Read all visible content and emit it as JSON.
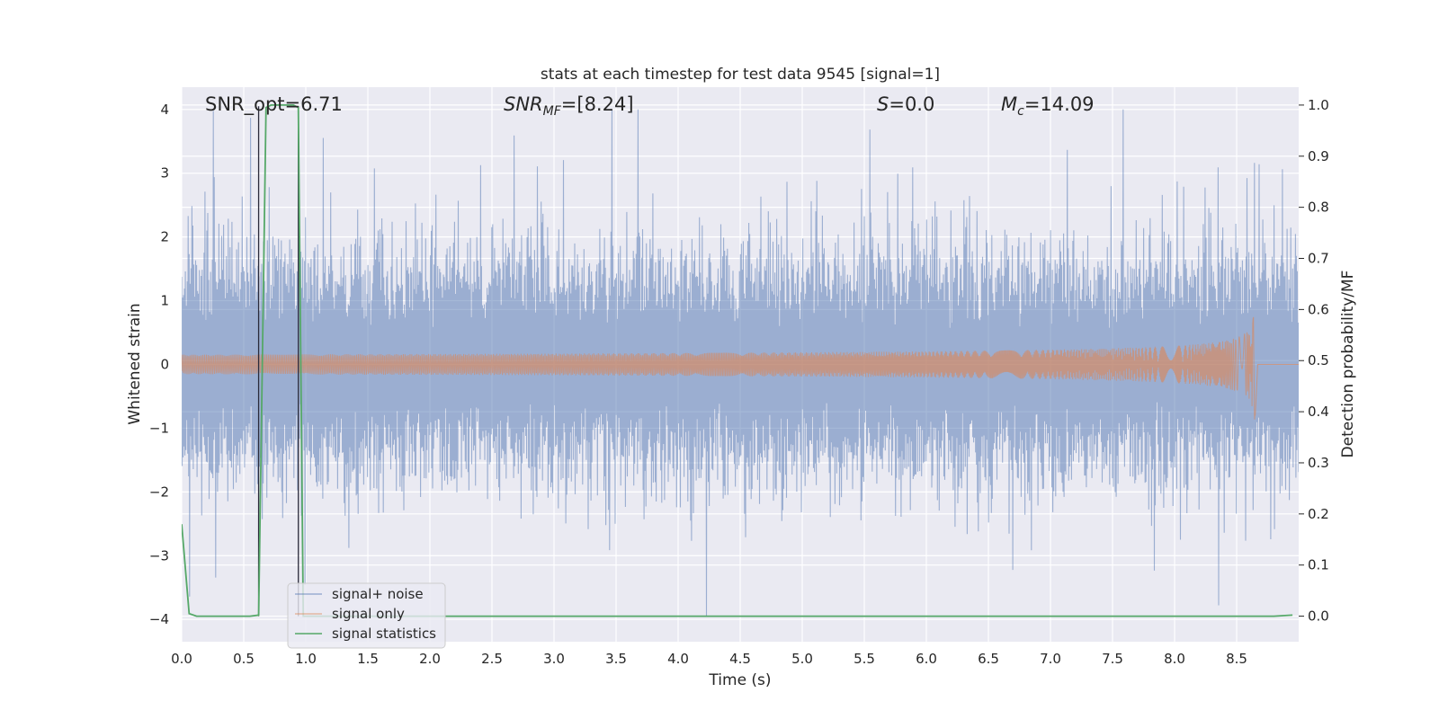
{
  "chart_data": {
    "type": "line",
    "title": "stats at each timestep for test data 9545 [signal=1]",
    "xlabel": "Time (s)",
    "ylabel": "Whitened strain",
    "ylabel_right": "Detection probability/MF",
    "xlim": [
      0.0,
      9.0
    ],
    "ylim": [
      -4.35,
      4.35
    ],
    "ylim_right": [
      -0.05,
      1.035
    ],
    "x_ticks": [
      "0.0",
      "0.5",
      "1.0",
      "1.5",
      "2.0",
      "2.5",
      "3.0",
      "3.5",
      "4.0",
      "4.5",
      "5.0",
      "5.5",
      "6.0",
      "6.5",
      "7.0",
      "7.5",
      "8.0",
      "8.5"
    ],
    "y_ticks": [
      "4",
      "3",
      "2",
      "1",
      "0",
      "−1",
      "−2",
      "−3",
      "−4"
    ],
    "y_ticks_right": [
      "1.0",
      "0.9",
      "0.8",
      "0.7",
      "0.6",
      "0.5",
      "0.4",
      "0.3",
      "0.2",
      "0.1",
      "0.0"
    ],
    "grid": true,
    "legend_position": "bottom-left",
    "annotations": {
      "snr_opt": "SNR_opt=6.71",
      "snr_mf_main": "SNR",
      "snr_mf_sub": "MF",
      "snr_mf_value": "=[8.24]",
      "s_main": "S",
      "s_value": "=0.0",
      "mc_main": "M",
      "mc_sub": "c",
      "mc_value": "=14.09"
    },
    "vlines_x": [
      0.62,
      0.94
    ],
    "series": [
      {
        "name": "signal+ noise",
        "color": "#4c72b0",
        "description": "whitened noisy strain, dense oscillation roughly within ±1.6 with spikes up to about ±4",
        "approx_envelope": [
          -1.6,
          1.6
        ],
        "peak_max": 4.0,
        "peak_min": -3.95
      },
      {
        "name": "signal only",
        "color": "#dd8452",
        "description": "chirp waveform growing in amplitude until merger near t = 8.65 s",
        "merger_time": 8.65,
        "peak_amplitude": 1.1
      },
      {
        "name": "signal statistics",
        "color": "#55a868",
        "axis": "right",
        "x": [
          0.0,
          0.06,
          0.12,
          0.2,
          0.4,
          0.55,
          0.62,
          0.68,
          0.72,
          0.8,
          0.9,
          0.94,
          0.98,
          1.05,
          2.0,
          4.0,
          6.0,
          8.0,
          8.8,
          8.95
        ],
        "y": [
          0.18,
          0.005,
          -0.0,
          0.0,
          0.0,
          0.0,
          0.002,
          0.995,
          1.0,
          1.0,
          1.0,
          0.995,
          0.0,
          0.0,
          0.0,
          0.0,
          0.0,
          0.0,
          0.0,
          0.002
        ]
      }
    ]
  }
}
